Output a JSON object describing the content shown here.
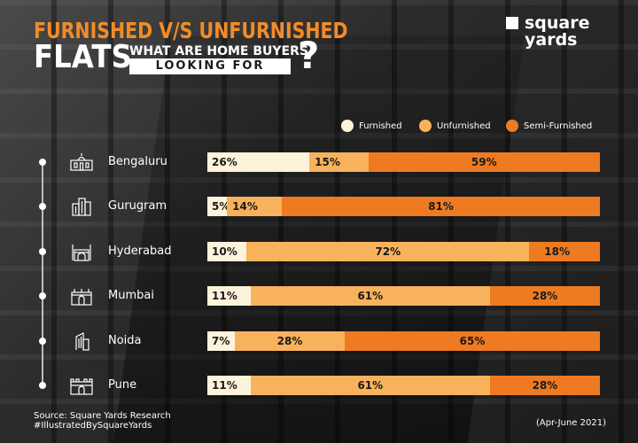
{
  "header": {
    "title_line1": "FURNISHED V/S UNFURNISHED",
    "title_line2": "FLATS",
    "question_line1": "WHAT ARE HOME BUYERS",
    "question_line2": "LOOKING FOR",
    "question_mark": "?"
  },
  "brand": {
    "line1": "square",
    "line2": "yards"
  },
  "colors": {
    "furnished": "#fdf3da",
    "unfurnished": "#f9b25c",
    "semi_furnished": "#ee7b22",
    "title_orange": "#f28c28"
  },
  "chart_data": {
    "type": "bar",
    "orientation": "horizontal",
    "stacked": true,
    "legend_position": "top-right",
    "categories": [
      "Bengaluru",
      "Gurugram",
      "Hyderabad",
      "Mumbai",
      "Noida",
      "Pune"
    ],
    "series": [
      {
        "name": "Furnished",
        "values": [
          26,
          5,
          10,
          11,
          7,
          11
        ]
      },
      {
        "name": "Unfurnished",
        "values": [
          15,
          14,
          72,
          61,
          28,
          61
        ]
      },
      {
        "name": "Semi-Furnished",
        "values": [
          59,
          81,
          18,
          28,
          65,
          28
        ]
      }
    ],
    "labels": [
      [
        "26%",
        "15%",
        "59%"
      ],
      [
        "5%",
        "14%",
        "81%"
      ],
      [
        "10%",
        "72%",
        "18%"
      ],
      [
        "11%",
        "61%",
        "28%"
      ],
      [
        "7%",
        "28%",
        "65%"
      ],
      [
        "11%",
        "61%",
        "28%"
      ]
    ],
    "city_icons": [
      "palace-icon",
      "skyscraper-icon",
      "charminar-icon",
      "gateway-of-india-icon",
      "office-tower-icon",
      "fort-icon"
    ]
  },
  "footer": {
    "source_line1": "Source: Square Yards Research",
    "source_line2": "#IllustratedBySquareYards",
    "period": "(Apr-June 2021)"
  }
}
